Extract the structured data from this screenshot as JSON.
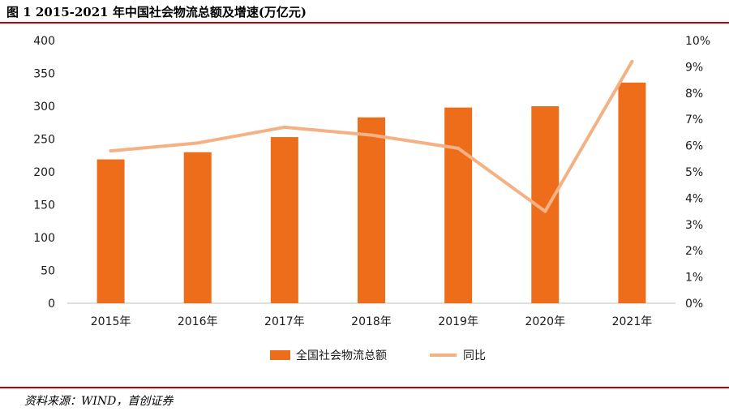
{
  "header": {
    "title": "图 1 2015-2021 年中国社会物流总额及增速(万亿元)"
  },
  "footer": {
    "source": "资料来源：WIND，首创证券"
  },
  "colors": {
    "bar": "#ED6D1B",
    "line": "#F4B183",
    "rule": "#C00000"
  },
  "chart_data": {
    "type": "bar",
    "categories": [
      "2015年",
      "2016年",
      "2017年",
      "2018年",
      "2019年",
      "2020年",
      "2021年"
    ],
    "series": [
      {
        "name": "全国社会物流总额",
        "type": "bar",
        "axis": "left",
        "values": [
          219,
          230,
          253,
          283,
          298,
          300,
          336
        ]
      },
      {
        "name": "同比",
        "type": "line",
        "axis": "right",
        "values": [
          5.8,
          6.1,
          6.7,
          6.4,
          5.9,
          3.5,
          9.2
        ]
      }
    ],
    "ylim": [
      0,
      400
    ],
    "y_ticks": [
      "0",
      "50",
      "100",
      "150",
      "200",
      "250",
      "300",
      "350",
      "400"
    ],
    "y2lim": [
      0,
      10
    ],
    "y2_ticks": [
      "0%",
      "1%",
      "2%",
      "3%",
      "4%",
      "5%",
      "6%",
      "7%",
      "8%",
      "9%",
      "10%"
    ],
    "grid": false,
    "legend_position": "bottom"
  }
}
